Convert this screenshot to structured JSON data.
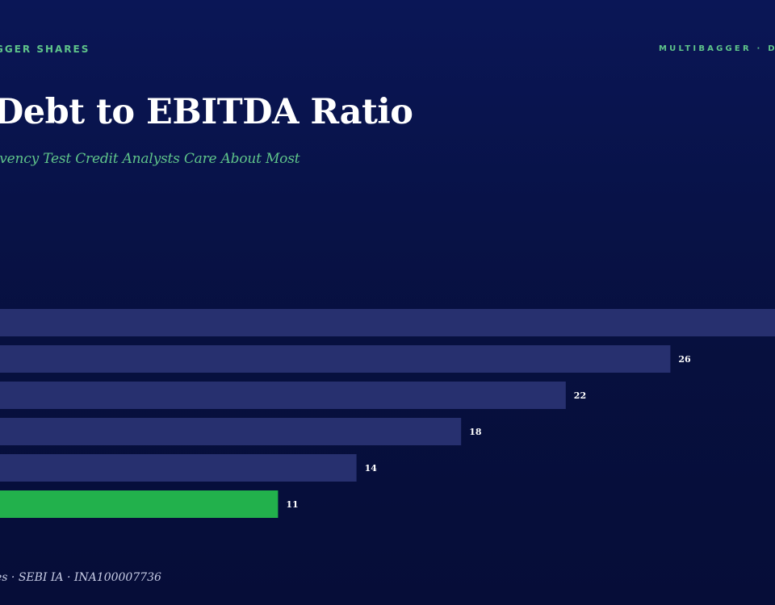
{
  "header": {
    "brand_left": "GGER SHARES",
    "brand_right": "MULTIBAGGER · D"
  },
  "title": "Debt to EBITDA Ratio",
  "subtitle": "lvency Test Credit Analysts Care About Most",
  "footer": "es · SEBI IA · INA100007736",
  "colors": {
    "background": "#0a1656",
    "bar_default": "#27306f",
    "bar_highlight": "#22b14c",
    "accent_text": "#5fc48a"
  },
  "chart_data": {
    "type": "bar",
    "orientation": "horizontal",
    "title": "Debt to EBITDA Ratio",
    "values": [
      30,
      26,
      22,
      18,
      14,
      11
    ],
    "data_labels": [
      "",
      "26",
      "22",
      "18",
      "14",
      "11"
    ],
    "highlight_index": 5,
    "xlim": [
      0,
      30
    ],
    "grid": false,
    "legend": "none"
  }
}
